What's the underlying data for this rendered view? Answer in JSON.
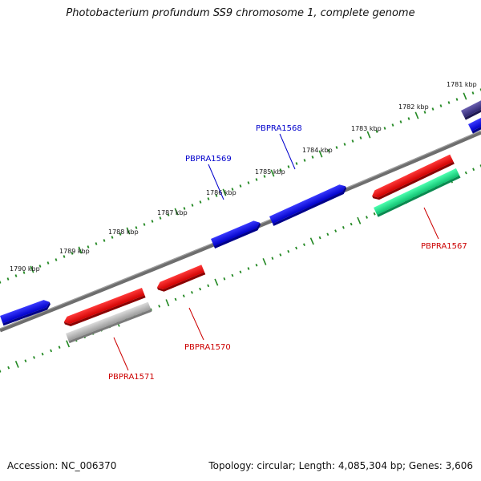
{
  "title": "Photobacterium profundum SS9 chromosome 1, complete genome",
  "footer": {
    "accession": "Accession: NC_006370",
    "summary": "Topology: circular; Length: 4,085,304 bp; Genes: 3,606"
  },
  "kbp_labels": [
    "1781 kbp",
    "1782 kbp",
    "1783 kbp",
    "1784 kbp",
    "1785 kbp",
    "1786 kbp",
    "1787 kbp",
    "1788 kbp",
    "1789 kbp",
    "1790 kbp"
  ],
  "gene_labels": [
    {
      "text": "PBPRA1568",
      "color": "#0000cc"
    },
    {
      "text": "PBPRA1569",
      "color": "#0000cc"
    },
    {
      "text": "PBPRA1567",
      "color": "#cc0000"
    },
    {
      "text": "PBPRA1570",
      "color": "#cc0000"
    },
    {
      "text": "PBPRA1571",
      "color": "#cc0000"
    }
  ],
  "colors": {
    "backbone": "#777777",
    "tick": "#228822",
    "forward_gene": "#1a1ae6",
    "reverse_gene": "#e61414",
    "rna_gene": "#22e08a",
    "pseudo_gene": "#bdbdbd",
    "dark_gene": "#4a3f8a"
  }
}
